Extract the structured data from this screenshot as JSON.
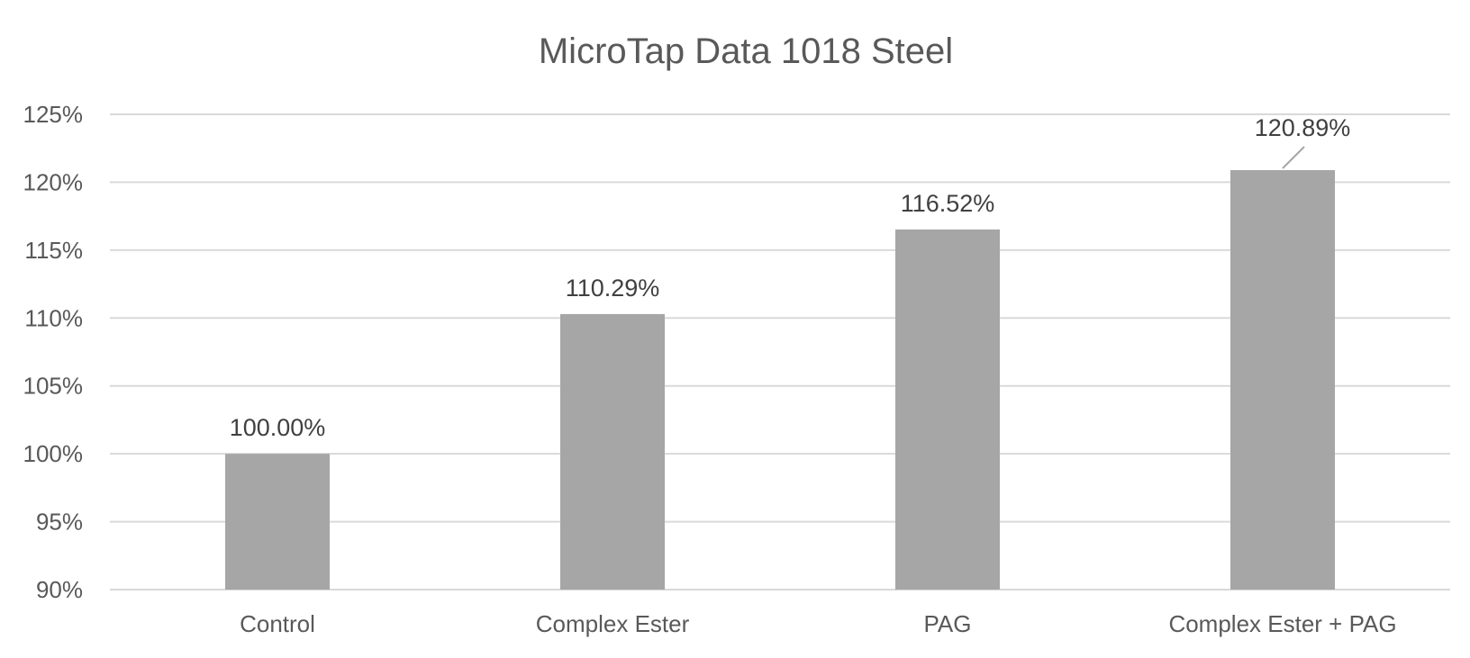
{
  "chart_data": {
    "type": "bar",
    "title": "MicroTap Data 1018 Steel",
    "xlabel": "",
    "ylabel": "",
    "categories": [
      "Control",
      "Complex Ester",
      "PAG",
      "Complex Ester + PAG"
    ],
    "values": [
      100.0,
      110.29,
      116.52,
      120.89
    ],
    "data_labels": [
      "100.00%",
      "110.29%",
      "116.52%",
      "120.89%"
    ],
    "ylim": [
      90,
      125
    ],
    "yticks": [
      90,
      95,
      100,
      105,
      110,
      115,
      120,
      125
    ],
    "ytick_labels": [
      "90%",
      "95%",
      "100%",
      "105%",
      "110%",
      "115%",
      "120%",
      "125%"
    ],
    "grid": true,
    "legend": "none",
    "bar_color": "#a6a6a6",
    "grid_color": "#d9d9d9"
  }
}
